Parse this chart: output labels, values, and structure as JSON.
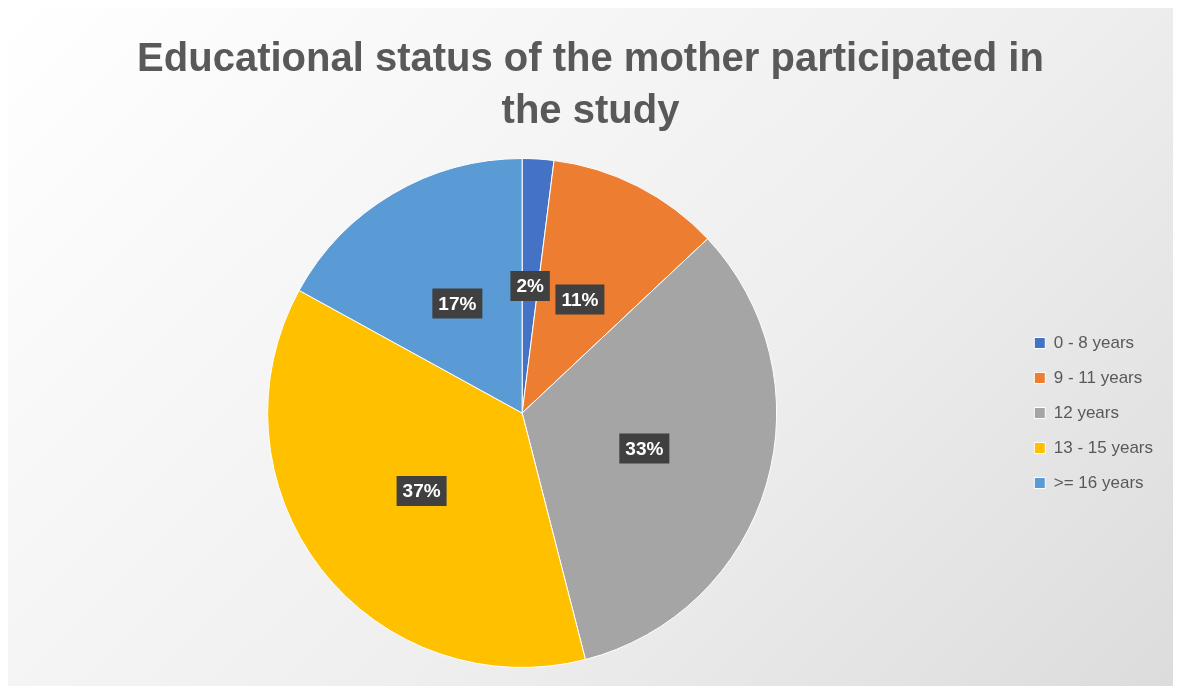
{
  "chart_data": {
    "type": "pie",
    "title": "Educational status of the mother participated in the study",
    "categories": [
      "0 - 8 years",
      "9 - 11 years",
      "12 years",
      "13 - 15 years",
      ">= 16 years"
    ],
    "values": [
      2,
      11,
      33,
      37,
      17
    ],
    "value_labels": [
      "2%",
      "11%",
      "33%",
      "37%",
      "17%"
    ],
    "colors": [
      "#4472c4",
      "#ed7d31",
      "#a5a5a5",
      "#ffc000",
      "#5b9bd5"
    ],
    "legend": "right"
  }
}
